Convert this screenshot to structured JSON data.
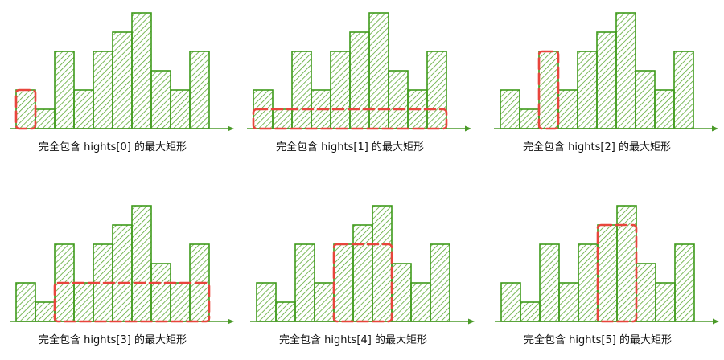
{
  "colors": {
    "bar_stroke": "#3e9a1a",
    "hatch": "#5aa832",
    "axis": "#4a9a28",
    "highlight": "#e8453c",
    "caption": "#111111"
  },
  "chart_data": {
    "type": "bar",
    "heights": [
      2,
      1,
      4,
      2,
      4,
      5,
      6,
      3,
      2,
      4
    ],
    "panels": [
      {
        "caption": "完全包含 hights[0] 的最大矩形",
        "index": 0,
        "highlight_start": 0,
        "highlight_end": 0,
        "highlight_height": 2
      },
      {
        "caption": "完全包含 hights[1] 的最大矩形",
        "index": 1,
        "highlight_start": 0,
        "highlight_end": 9,
        "highlight_height": 1
      },
      {
        "caption": "完全包含 hights[2] 的最大矩形",
        "index": 2,
        "highlight_start": 2,
        "highlight_end": 2,
        "highlight_height": 4
      },
      {
        "caption": "完全包含 hights[3] 的最大矩形",
        "index": 3,
        "highlight_start": 2,
        "highlight_end": 9,
        "highlight_height": 2
      },
      {
        "caption": "完全包含 hights[4] 的最大矩形",
        "index": 4,
        "highlight_start": 4,
        "highlight_end": 6,
        "highlight_height": 4
      },
      {
        "caption": "完全包含 hights[5] 的最大矩形",
        "index": 5,
        "highlight_start": 5,
        "highlight_end": 6,
        "highlight_height": 5
      }
    ]
  }
}
